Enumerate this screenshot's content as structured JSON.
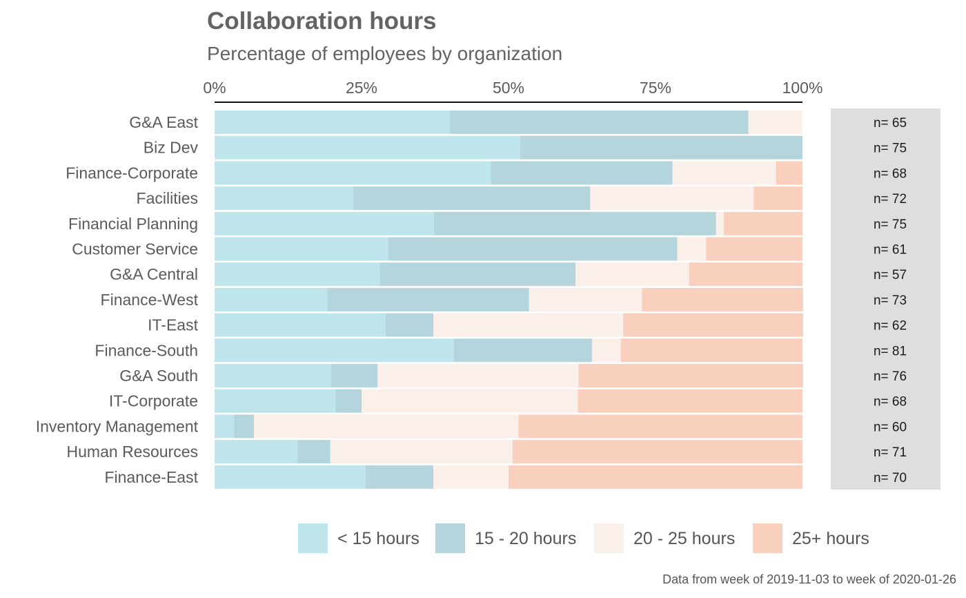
{
  "chart_data": {
    "type": "bar",
    "orientation": "horizontal",
    "stacked": "percent",
    "title": "Collaboration hours",
    "subtitle": "Percentage of employees by organization",
    "caption": "Data from week of 2019-11-03 to week of 2020-01-26",
    "x_ticks": [
      "0%",
      "25%",
      "50%",
      "75%",
      "100%"
    ],
    "x_tick_values": [
      0,
      25,
      50,
      75,
      100
    ],
    "xlim": [
      0,
      100
    ],
    "x_axis_position": "top",
    "grid": false,
    "legend_position": "bottom",
    "categories": [
      "G&A East",
      "Biz Dev",
      "Finance-Corporate",
      "Facilities",
      "Financial Planning",
      "Customer Service",
      "G&A Central",
      "Finance-West",
      "IT-East",
      "Finance-South",
      "G&A South",
      "IT-Corporate",
      "Inventory Management",
      "Human Resources",
      "Finance-East"
    ],
    "n_labels": [
      "n= 65",
      "n= 75",
      "n= 68",
      "n= 72",
      "n= 75",
      "n= 61",
      "n= 57",
      "n= 73",
      "n= 62",
      "n= 81",
      "n= 76",
      "n= 68",
      "n= 60",
      "n= 71",
      "n= 70"
    ],
    "series": [
      {
        "name": "< 15 hours",
        "color": "#bfe5ec",
        "values": [
          40,
          52,
          47,
          23.6,
          37.3,
          29.5,
          28.1,
          19.2,
          29.1,
          40.7,
          19.8,
          20.6,
          3.3,
          14.1,
          25.7
        ]
      },
      {
        "name": "15 - 20 hours",
        "color": "#b4d5dc",
        "values": [
          50.8,
          48,
          30.9,
          40.3,
          48,
          49.2,
          33.3,
          34.3,
          8.1,
          23.5,
          7.9,
          4.4,
          3.4,
          5.6,
          11.5
        ]
      },
      {
        "name": "20 - 25 hours",
        "color": "#fbefea",
        "values": [
          9.2,
          0,
          17.6,
          27.8,
          1.3,
          4.9,
          19.3,
          19.2,
          32.3,
          4.9,
          34.2,
          36.8,
          45,
          31,
          12.8
        ]
      },
      {
        "name": "25+ hours",
        "color": "#f9cfbe",
        "values": [
          0,
          0,
          4.5,
          8.3,
          13.4,
          16.4,
          19.3,
          27.4,
          30.6,
          30.9,
          38.2,
          38.2,
          48.3,
          49.3,
          50
        ]
      }
    ]
  }
}
